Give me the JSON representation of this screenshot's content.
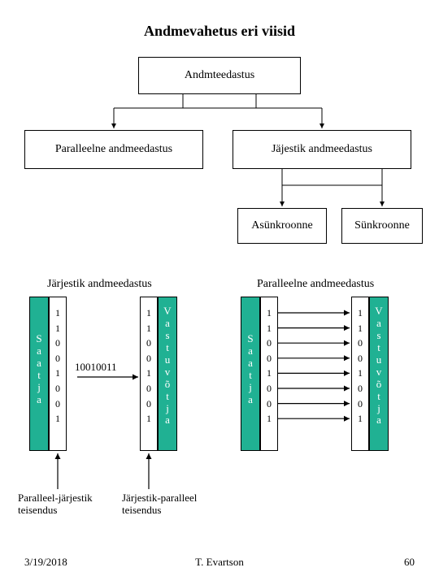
{
  "title": "Andmevahetus eri viisid",
  "tree": {
    "root": "Andmteedastus",
    "left": "Paralleelne andmeedastus",
    "right": "Jäjestik andmeedastus",
    "right_left": "Asünkroonne",
    "right_right": "Sünkroonne"
  },
  "sections": {
    "left_title": "Järjestik andmeedastus",
    "right_title": "Paralleelne andmeedastus"
  },
  "labels": {
    "sender": "Saatja",
    "receiver": "Vastuvõtja",
    "mid_bits": "10010011",
    "caption_left": "Paralleel-järjestik\nteisendus",
    "caption_right": "Järjestik-paralleel\nteisendus"
  },
  "bits": [
    "1",
    "1",
    "0",
    "0",
    "1",
    "0",
    "0",
    "1"
  ],
  "footer": {
    "date": "3/19/2018",
    "author": "T. Evartson",
    "page": "60"
  },
  "style": {
    "green": "#20b193",
    "white_text": "#ffffff",
    "black": "#000000",
    "font_title_pt": 18,
    "font_body_pt": 14,
    "font_small_pt": 13
  }
}
